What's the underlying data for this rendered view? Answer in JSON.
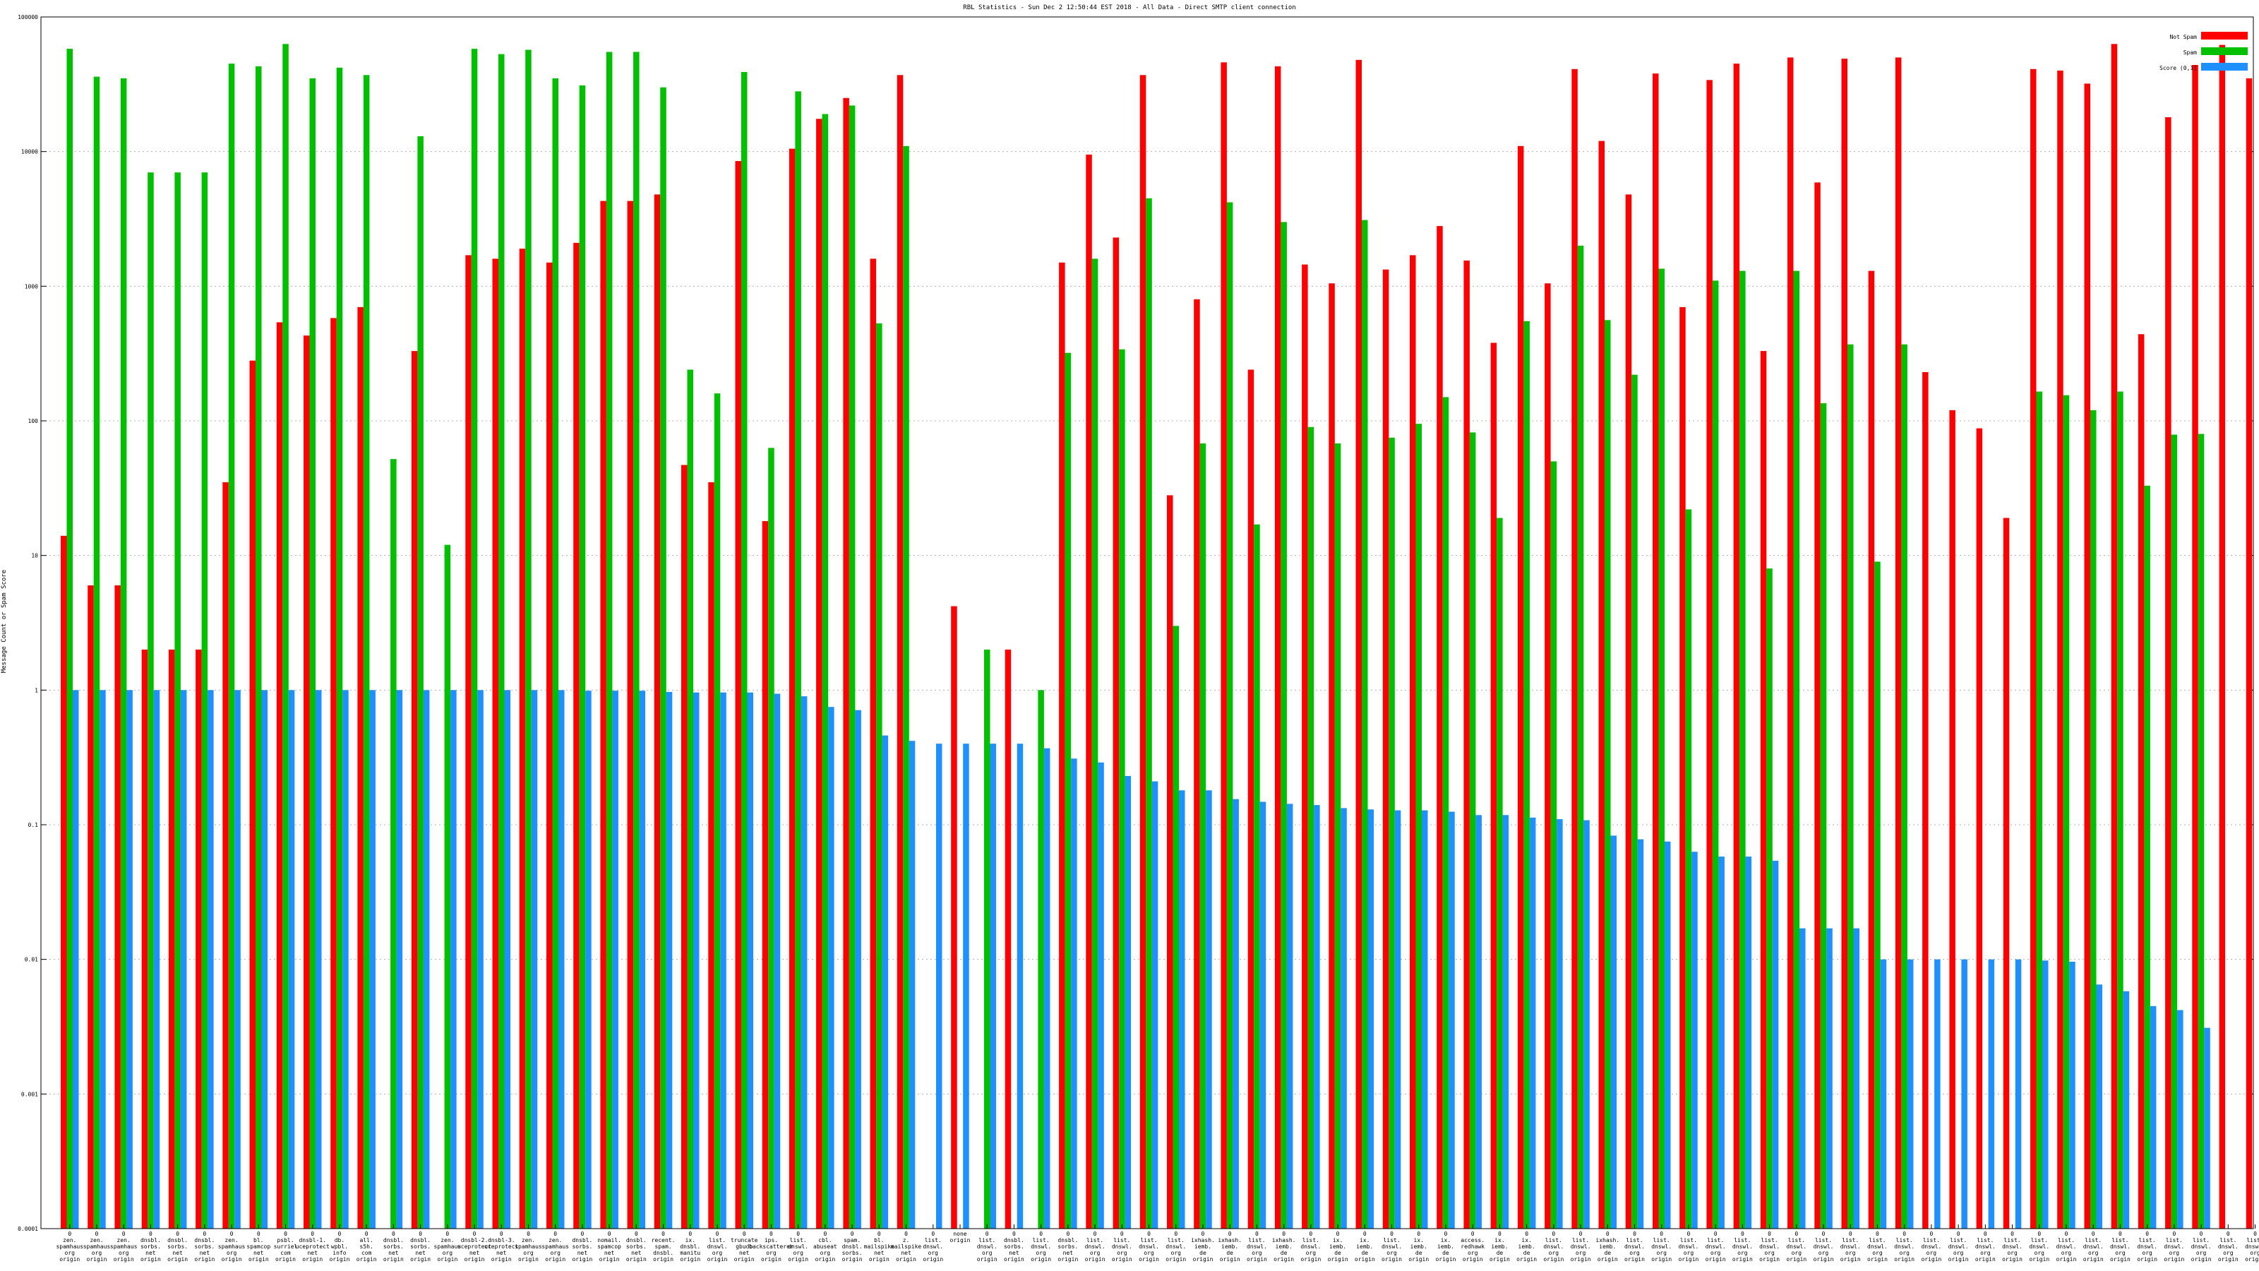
{
  "chart_data": {
    "type": "bar",
    "title": "RBL Statistics - Sun Dec  2 12:50:44 EST 2018 - All Data - Direct SMTP client connection",
    "ylabel": "Message Count or Spam Score",
    "yscale": "log",
    "ylim": [
      0.0001,
      100000
    ],
    "yticks": [
      {
        "value": 0.0001,
        "label": "0.0001"
      },
      {
        "value": 0.001,
        "label": "0.001"
      },
      {
        "value": 0.01,
        "label": "0.01"
      },
      {
        "value": 0.1,
        "label": "0.1"
      },
      {
        "value": 1,
        "label": "1"
      },
      {
        "value": 10,
        "label": "10"
      },
      {
        "value": 100,
        "label": "100"
      },
      {
        "value": 1000,
        "label": "1000"
      },
      {
        "value": 10000,
        "label": "10000"
      },
      {
        "value": 100000,
        "label": "100000"
      }
    ],
    "grid": true,
    "legend_position": "top-right",
    "categories": [
      [
        "0",
        "zen.",
        "spamhaus",
        "org",
        "origin"
      ],
      [
        "0",
        "zen.",
        "spamhaus",
        "org",
        "origin"
      ],
      [
        "0",
        "zen.",
        "spamhaus",
        "org",
        "origin"
      ],
      [
        "0",
        "dnsbl.",
        "sorbs.",
        "net",
        "origin"
      ],
      [
        "0",
        "dnsbl.",
        "sorbs.",
        "net",
        "origin"
      ],
      [
        "0",
        "dnsbl.",
        "sorbs.",
        "net",
        "origin"
      ],
      [
        "0",
        "zen.",
        "spamhaus",
        "org",
        "origin"
      ],
      [
        "0",
        "bl.",
        "spamcop",
        "net",
        "origin"
      ],
      [
        "0",
        "psbl.",
        "surriel",
        "com",
        "origin"
      ],
      [
        "0",
        "dnsbl-1.",
        "uceprotect",
        "net",
        "origin"
      ],
      [
        "0",
        "db.",
        "wpbl.",
        "info",
        "origin"
      ],
      [
        "0",
        "all.",
        "s5h.",
        "com",
        "origin"
      ],
      [
        "0",
        "dnsbl.",
        "sorbs.",
        "net",
        "origin"
      ],
      [
        "0",
        "dnsbl.",
        "sorbs.",
        "net",
        "origin"
      ],
      [
        "0",
        "zen.",
        "spamhaus",
        "org",
        "origin"
      ],
      [
        "0",
        "dnsbl-2.",
        "uceprotect",
        "net",
        "origin"
      ],
      [
        "0",
        "dnsbl-3.",
        "uceprotect",
        "net",
        "origin"
      ],
      [
        "0",
        "zen.",
        "spamhaus",
        "org",
        "origin"
      ],
      [
        "0",
        "zen.",
        "spamhaus",
        "org",
        "origin"
      ],
      [
        "0",
        "dnsbl.",
        "sorbs.",
        "net",
        "origin"
      ],
      [
        "0",
        "nomail.",
        "spamcop",
        "net",
        "origin"
      ],
      [
        "0",
        "dnsbl.",
        "sorbs.",
        "net",
        "origin"
      ],
      [
        "0",
        "recent.",
        "spam.",
        "dnsbl.",
        "origin"
      ],
      [
        "0",
        "ix.",
        "dnsbl.",
        "manitu",
        "origin"
      ],
      [
        "0",
        "list.",
        "dnswl.",
        "org",
        "origin"
      ],
      [
        "0",
        "truncate",
        "gbudb",
        "net",
        "origin"
      ],
      [
        "0",
        "ips.",
        "backscatterer",
        "org",
        "origin"
      ],
      [
        "0",
        "list.",
        "dnswl.",
        "org",
        "origin"
      ],
      [
        "0",
        "cbl.",
        "abuseat",
        "org",
        "origin"
      ],
      [
        "0",
        "spam.",
        "dnsbl.",
        "sorbs.",
        "origin"
      ],
      [
        "0",
        "bl.",
        "mailspike",
        "net",
        "origin"
      ],
      [
        "0",
        "z.",
        "mailspike",
        "net",
        "origin"
      ],
      [
        "0",
        "list.",
        "dnswl.",
        "org",
        "origin"
      ],
      [
        "none",
        "origin"
      ],
      [
        "0",
        "list.",
        "dnswl.",
        "org",
        "origin"
      ],
      [
        "0",
        "dnsbl.",
        "sorbs.",
        "net",
        "origin"
      ],
      [
        "0",
        "list.",
        "dnswl.",
        "org",
        "origin"
      ],
      [
        "0",
        "dnsbl.",
        "sorbs.",
        "net",
        "origin"
      ],
      [
        "0",
        "list.",
        "dnswl.",
        "org",
        "origin"
      ],
      [
        "0",
        "list.",
        "dnswl.",
        "org",
        "origin"
      ],
      [
        "0",
        "list.",
        "dnswl.",
        "org",
        "origin"
      ],
      [
        "0",
        "list.",
        "dnswl.",
        "org",
        "origin"
      ],
      [
        "0",
        "ixhash.",
        "iemb.",
        "de",
        "origin"
      ],
      [
        "0",
        "ixhash.",
        "iemb.",
        "de",
        "origin"
      ],
      [
        "0",
        "list.",
        "dnswl.",
        "org",
        "origin"
      ],
      [
        "0",
        "ixhash.",
        "iemb.",
        "de",
        "origin"
      ],
      [
        "0",
        "list.",
        "dnswl.",
        "org",
        "origin"
      ],
      [
        "0",
        "ix.",
        "iemb.",
        "de",
        "origin"
      ],
      [
        "0",
        "ix.",
        "iemb.",
        "de",
        "origin"
      ],
      [
        "0",
        "list.",
        "dnswl.",
        "org",
        "origin"
      ],
      [
        "0",
        "ix.",
        "iemb.",
        "de",
        "origin"
      ],
      [
        "0",
        "ix.",
        "iemb.",
        "de",
        "origin"
      ],
      [
        "0",
        "access.",
        "redhawk",
        "org",
        "origin"
      ],
      [
        "0",
        "ix.",
        "iemb.",
        "de",
        "origin"
      ],
      [
        "0",
        "ix.",
        "iemb.",
        "de",
        "origin"
      ],
      [
        "0",
        "list.",
        "dnswl.",
        "org",
        "origin"
      ],
      [
        "0",
        "list.",
        "dnswl.",
        "org",
        "origin"
      ],
      [
        "0",
        "ixhash.",
        "iemb.",
        "de",
        "origin"
      ],
      [
        "0",
        "list.",
        "dnswl.",
        "org",
        "origin"
      ],
      [
        "0",
        "list.",
        "dnswl.",
        "org",
        "origin"
      ],
      [
        "0",
        "list.",
        "dnswl.",
        "org",
        "origin"
      ],
      [
        "0",
        "list.",
        "dnswl.",
        "org",
        "origin"
      ],
      [
        "0",
        "list.",
        "dnswl.",
        "org",
        "origin"
      ],
      [
        "0",
        "list.",
        "dnswl.",
        "org",
        "origin"
      ],
      [
        "0",
        "list.",
        "dnswl.",
        "org",
        "origin"
      ],
      [
        "0",
        "list.",
        "dnswl.",
        "org",
        "origin"
      ],
      [
        "0",
        "list.",
        "dnswl.",
        "org",
        "origin"
      ],
      [
        "0",
        "list.",
        "dnswl.",
        "org",
        "origin"
      ],
      [
        "0",
        "list.",
        "dnswl.",
        "org",
        "origin"
      ],
      [
        "0",
        "list.",
        "dnswl.",
        "org",
        "origin"
      ],
      [
        "0",
        "list.",
        "dnswl.",
        "org",
        "origin"
      ],
      [
        "0",
        "list.",
        "dnswl.",
        "org",
        "origin"
      ],
      [
        "0",
        "list.",
        "dnswl.",
        "org",
        "origin"
      ],
      [
        "0",
        "list.",
        "dnswl.",
        "org",
        "origin"
      ],
      [
        "0",
        "list.",
        "dnswl.",
        "org",
        "origin"
      ],
      [
        "0",
        "list.",
        "dnswl.",
        "org",
        "origin"
      ],
      [
        "0",
        "list.",
        "dnswl.",
        "org",
        "origin"
      ],
      [
        "0",
        "list.",
        "dnswl.",
        "org",
        "origin"
      ],
      [
        "0",
        "list.",
        "dnswl.",
        "org",
        "origin"
      ],
      [
        "0",
        "list.",
        "dnswl.",
        "org",
        "origin"
      ],
      [
        "0",
        "list.",
        "dnswl.",
        "org",
        "origin"
      ],
      [
        "0",
        "list.",
        "dnswl.",
        "org",
        "origin"
      ]
    ],
    "series": [
      {
        "name": "Not Spam",
        "color": "#ff0000",
        "values": [
          14,
          6,
          6,
          2,
          2,
          2,
          35,
          280,
          540,
          430,
          580,
          700,
          null,
          330,
          null,
          1700,
          1600,
          1900,
          1500,
          2100,
          4300,
          4300,
          4800,
          47,
          35,
          8500,
          18,
          10500,
          17500,
          25000,
          1600,
          37000,
          null,
          4.2,
          null,
          2,
          null,
          1500,
          9500,
          2300,
          37000,
          28,
          800,
          46000,
          240,
          43000,
          1450,
          1050,
          48000,
          1330,
          1700,
          2800,
          1550,
          380,
          11000,
          1050,
          41000,
          12000,
          4800,
          38000,
          700,
          34000,
          45000,
          330,
          50000,
          5900,
          49000,
          1300,
          50000,
          230,
          120,
          88,
          19,
          41000,
          40000,
          32000,
          63000,
          440,
          18000,
          44000,
          62000,
          35000
        ]
      },
      {
        "name": "Spam",
        "color": "#00c000",
        "values": [
          58000,
          36000,
          35000,
          7000,
          7000,
          7000,
          45000,
          43000,
          63000,
          35000,
          42000,
          37000,
          52,
          13000,
          12,
          58000,
          53000,
          57000,
          35000,
          31000,
          55000,
          55000,
          30000,
          240,
          160,
          39000,
          63,
          28000,
          19000,
          22000,
          530,
          11000,
          null,
          null,
          2,
          null,
          1,
          320,
          1600,
          340,
          4500,
          3,
          68,
          4200,
          17,
          3000,
          90,
          68,
          3100,
          75,
          95,
          150,
          82,
          19,
          550,
          50,
          2000,
          560,
          220,
          1350,
          22,
          1100,
          1300,
          8,
          1300,
          135,
          370,
          9,
          370,
          null,
          null,
          null,
          null,
          165,
          155,
          120,
          165,
          33,
          79,
          80,
          null,
          null
        ]
      },
      {
        "name": "Score (0,1]",
        "color": "#1e90ff",
        "values": [
          1,
          1,
          1,
          1,
          1,
          1,
          1,
          1,
          1,
          1,
          1,
          1,
          1,
          1,
          1,
          1,
          1,
          1,
          1,
          0.99,
          0.99,
          0.99,
          0.97,
          0.96,
          0.96,
          0.96,
          0.94,
          0.9,
          0.75,
          0.71,
          0.46,
          0.42,
          0.4,
          0.4,
          0.4,
          0.4,
          0.37,
          0.31,
          0.29,
          0.23,
          0.21,
          0.18,
          0.18,
          0.155,
          0.148,
          0.143,
          0.14,
          0.133,
          0.13,
          0.128,
          0.128,
          0.125,
          0.118,
          0.118,
          0.113,
          0.11,
          0.108,
          0.083,
          0.078,
          0.075,
          0.063,
          0.058,
          0.058,
          0.054,
          0.017,
          0.017,
          0.017,
          0.01,
          0.01,
          0.01,
          0.01,
          0.01,
          0.01,
          0.0098,
          0.0096,
          0.0065,
          0.0058,
          0.0045,
          0.0042,
          0.0031,
          null,
          null
        ]
      }
    ]
  }
}
